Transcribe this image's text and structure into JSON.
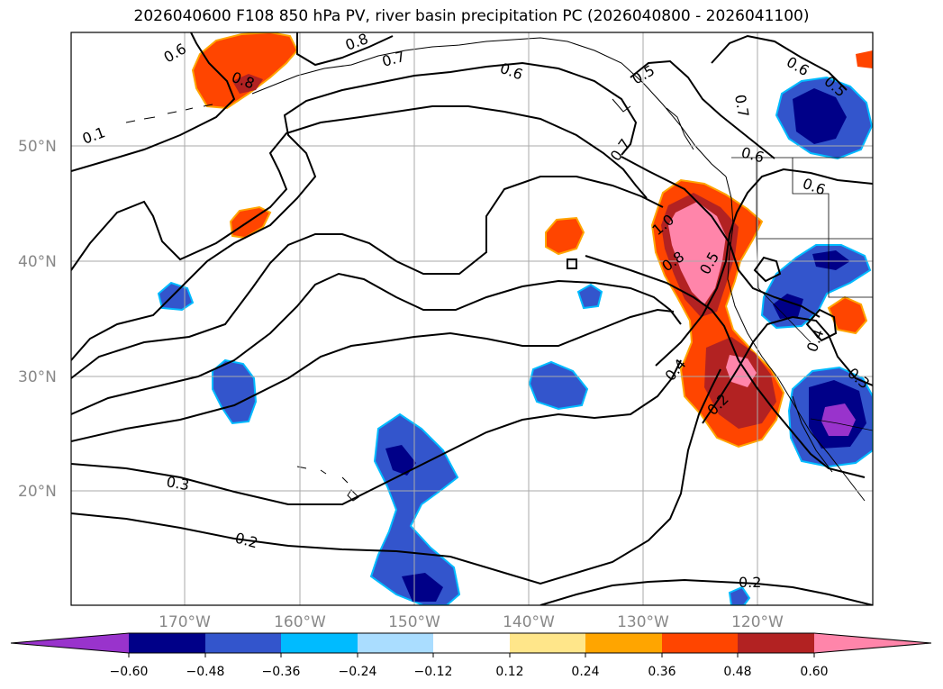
{
  "title": "2026040600 F108 850 hPa PV, river basin precipitation PC (2026040800 - 2026041100)",
  "lat_labels": [
    "50°N",
    "40°N",
    "30°N",
    "20°N"
  ],
  "lon_labels": [
    "170°W",
    "160°W",
    "150°W",
    "140°W",
    "130°W",
    "120°W"
  ],
  "contour_labels": [
    "0.6",
    "0.8",
    "0.8",
    "0.7",
    "0.6",
    "0.5",
    "0.7",
    "0.6",
    "0.5",
    "0.1",
    "0.7",
    "0.6",
    "0.6",
    "1.0",
    "0.8",
    "0.5",
    "0.4",
    "0.2",
    "0.4",
    "0.3",
    "0.3",
    "0.2",
    "0.2"
  ],
  "colorbar": {
    "tick_labels": [
      "−0.60",
      "−0.48",
      "−0.36",
      "−0.24",
      "−0.12",
      "0.12",
      "0.24",
      "0.36",
      "0.48",
      "0.60"
    ],
    "colors": [
      "#9933cc",
      "#000088",
      "#3355cc",
      "#00bbff",
      "#aaddff",
      "#ffffff",
      "#ffe68a",
      "#ffa500",
      "#ff4500",
      "#b22222",
      "#ff85aa"
    ],
    "extend": "both"
  },
  "colors": {
    "pink": "#ff85aa",
    "darkred": "#b22222",
    "orangered": "#ff4500",
    "orange": "#ffa500",
    "yellow": "#ffe68a",
    "lightblue": "#aaddff",
    "cyan": "#00bbff",
    "blue": "#3355cc",
    "navy": "#000088",
    "purple": "#9933cc"
  }
}
